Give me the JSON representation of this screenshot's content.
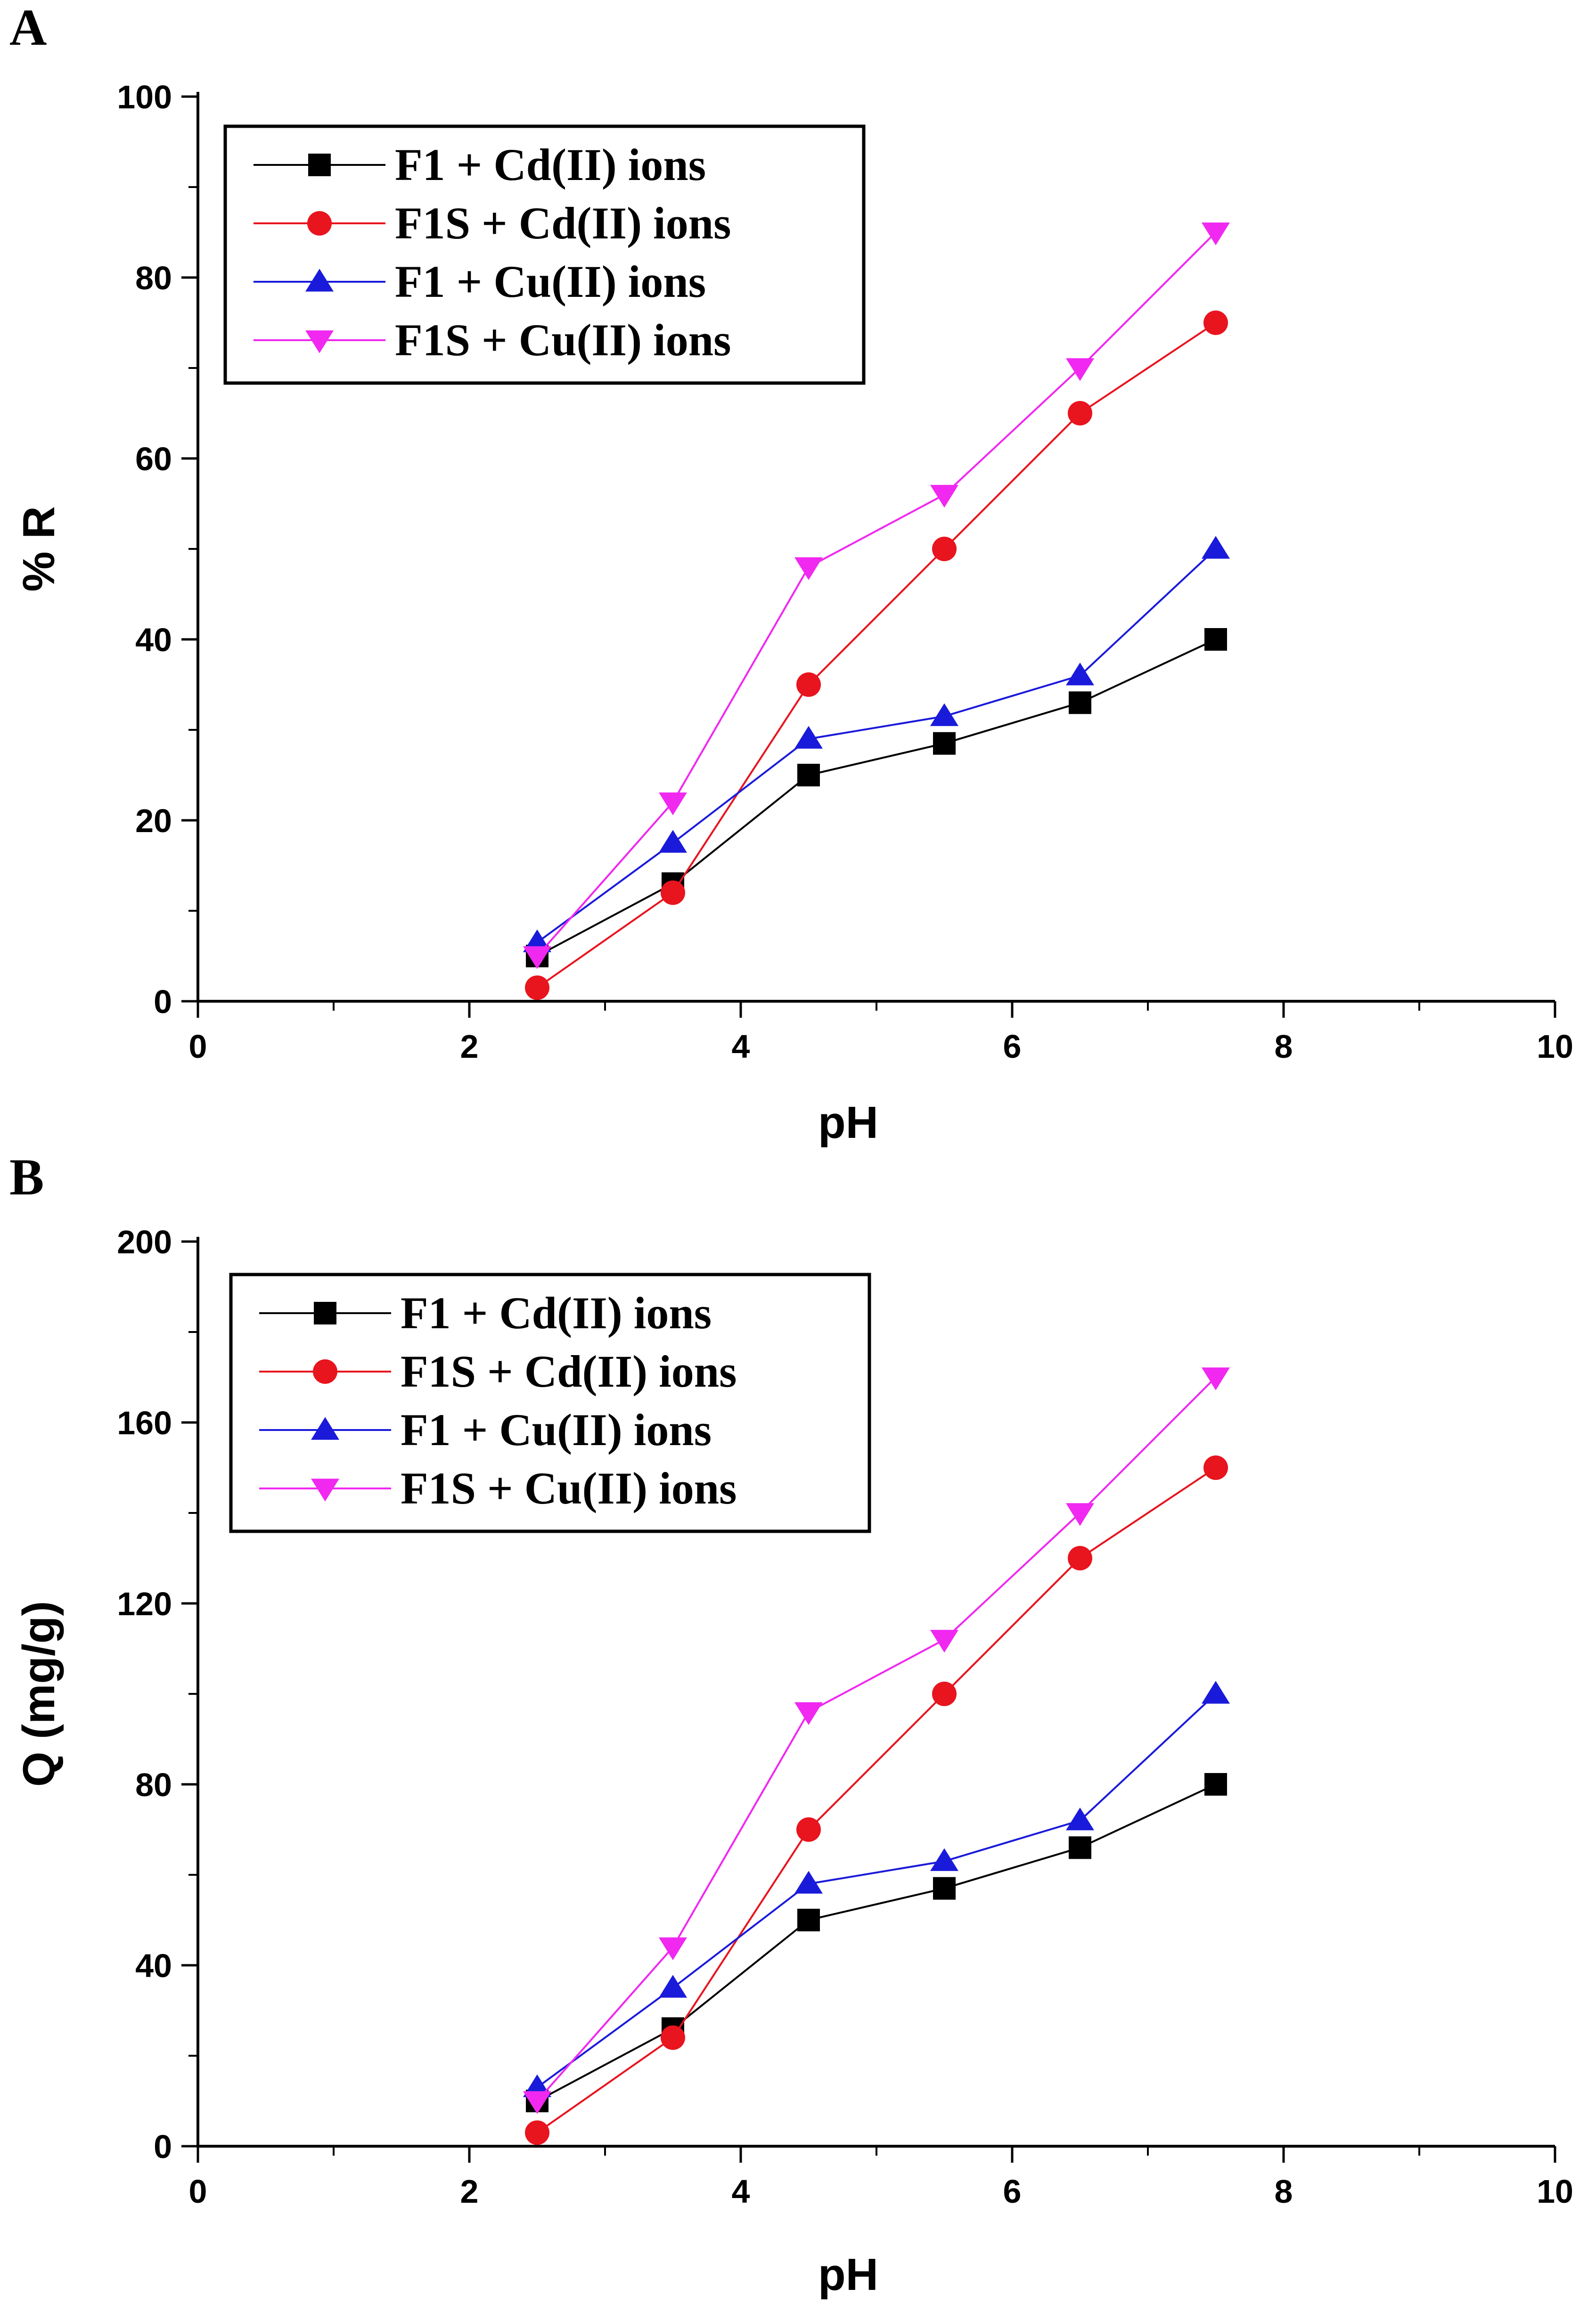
{
  "chart_data": [
    {
      "type": "line",
      "panel_label": "A",
      "title": "",
      "xlabel": "pH",
      "ylabel": "% R",
      "xlim": [
        0,
        10
      ],
      "ylim": [
        0,
        100
      ],
      "xticks": [
        "0",
        "2",
        "4",
        "6",
        "8",
        "10"
      ],
      "yticks": [
        "0",
        "20",
        "40",
        "60",
        "80",
        "100"
      ],
      "legend_position": "top-left",
      "x": [
        2.5,
        3.5,
        4.5,
        5.5,
        6.5,
        7.5
      ],
      "series": [
        {
          "name": "F1 + Cd(II) ions",
          "color": "#000000",
          "marker": "square",
          "values": [
            5,
            13,
            25,
            28.5,
            33,
            40
          ]
        },
        {
          "name": "F1S + Cd(II) ions",
          "color": "#e8141e",
          "marker": "circle",
          "values": [
            1.5,
            12,
            35,
            50,
            65,
            75
          ]
        },
        {
          "name": "F1 + Cu(II) ions",
          "color": "#1a1adb",
          "marker": "triangle-up",
          "values": [
            6.5,
            17.5,
            29,
            31.5,
            36,
            50
          ]
        },
        {
          "name": "F1S + Cu(II) ions",
          "color": "#f028f0",
          "marker": "triangle-down",
          "values": [
            5,
            22,
            48,
            56,
            70,
            85
          ]
        }
      ]
    },
    {
      "type": "line",
      "panel_label": "B",
      "title": "",
      "xlabel": "pH",
      "ylabel": "Q (mg/g)",
      "xlim": [
        0,
        10
      ],
      "ylim": [
        0,
        200
      ],
      "xticks": [
        "0",
        "2",
        "4",
        "6",
        "8",
        "10"
      ],
      "yticks": [
        "0",
        "40",
        "80",
        "120",
        "160",
        "200"
      ],
      "legend_position": "top-left",
      "x": [
        2.5,
        3.5,
        4.5,
        5.5,
        6.5,
        7.5
      ],
      "series": [
        {
          "name": "F1 + Cd(II) ions",
          "color": "#000000",
          "marker": "square",
          "values": [
            10,
            26,
            50,
            57,
            66,
            80
          ]
        },
        {
          "name": "F1S + Cd(II) ions",
          "color": "#e8141e",
          "marker": "circle",
          "values": [
            3,
            24,
            70,
            100,
            130,
            150
          ]
        },
        {
          "name": "F1 + Cu(II) ions",
          "color": "#1a1adb",
          "marker": "triangle-up",
          "values": [
            13,
            35,
            58,
            63,
            72,
            100
          ]
        },
        {
          "name": "F1S + Cu(II) ions",
          "color": "#f028f0",
          "marker": "triangle-down",
          "values": [
            10,
            44,
            96,
            112,
            140,
            170
          ]
        }
      ]
    }
  ]
}
